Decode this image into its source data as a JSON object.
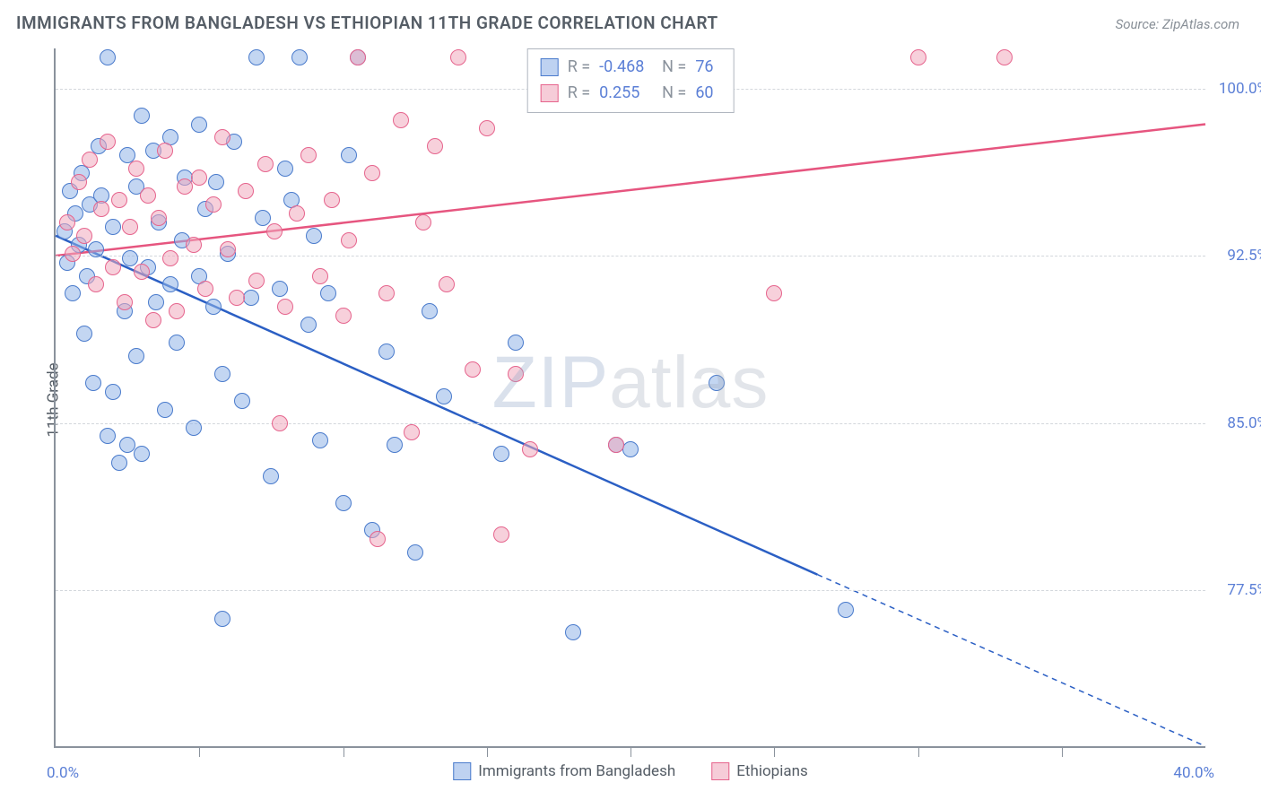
{
  "title": "IMMIGRANTS FROM BANGLADESH VS ETHIOPIAN 11TH GRADE CORRELATION CHART",
  "source_label": "Source:",
  "source_name": "ZipAtlas.com",
  "ylabel": "11th Grade",
  "watermark_bold": "ZIP",
  "watermark_thin": "atlas",
  "chart": {
    "type": "scatter",
    "background_color": "#ffffff",
    "grid_color": "#d3d7dc",
    "axis_color": "#8a929c",
    "text_color": "#555d66",
    "value_color": "#5b7fd6",
    "xlim": [
      0,
      40
    ],
    "ylim": [
      70.5,
      101.8
    ],
    "xtick_min_label": "0.0%",
    "xtick_max_label": "40.0%",
    "xtick_positions": [
      5,
      10,
      15,
      20,
      25,
      30,
      35
    ],
    "yticks": [
      {
        "v": 77.5,
        "label": "77.5%"
      },
      {
        "v": 85.0,
        "label": "85.0%"
      },
      {
        "v": 92.5,
        "label": "92.5%"
      },
      {
        "v": 100.0,
        "label": "100.0%"
      }
    ],
    "legend_top": {
      "r_label": "R =",
      "n_label": "N =",
      "rows": [
        {
          "swatch": "blue",
          "r": "-0.468",
          "n": "76"
        },
        {
          "swatch": "pink",
          "r": "0.255",
          "n": "60"
        }
      ]
    },
    "legend_bottom": [
      {
        "swatch": "blue",
        "label": "Immigrants from Bangladesh"
      },
      {
        "swatch": "pink",
        "label": "Ethiopians"
      }
    ],
    "series": [
      {
        "name": "bangladesh",
        "color_fill": "rgba(146,180,232,0.55)",
        "color_stroke": "#4a7bcc",
        "line_color": "#2b5fc4",
        "line_width": 2.5,
        "trend": {
          "x1": 0,
          "y1": 93.4,
          "x2": 26.5,
          "y2": 78.2,
          "ext_x2": 40,
          "ext_y2": 70.5
        },
        "points": [
          [
            0.3,
            93.6
          ],
          [
            0.4,
            92.2
          ],
          [
            0.5,
            95.4
          ],
          [
            0.6,
            90.8
          ],
          [
            0.7,
            94.4
          ],
          [
            0.8,
            93.0
          ],
          [
            0.9,
            96.2
          ],
          [
            1.0,
            89.0
          ],
          [
            1.1,
            91.6
          ],
          [
            1.2,
            94.8
          ],
          [
            1.3,
            86.8
          ],
          [
            1.4,
            92.8
          ],
          [
            1.5,
            97.4
          ],
          [
            1.6,
            95.2
          ],
          [
            1.8,
            84.4
          ],
          [
            1.8,
            101.4
          ],
          [
            2.0,
            93.8
          ],
          [
            2.0,
            86.4
          ],
          [
            2.2,
            83.2
          ],
          [
            2.4,
            90.0
          ],
          [
            2.5,
            97.0
          ],
          [
            2.5,
            84.0
          ],
          [
            2.6,
            92.4
          ],
          [
            2.8,
            95.6
          ],
          [
            2.8,
            88.0
          ],
          [
            3.0,
            98.8
          ],
          [
            3.0,
            83.6
          ],
          [
            3.2,
            92.0
          ],
          [
            3.4,
            97.2
          ],
          [
            3.5,
            90.4
          ],
          [
            3.6,
            94.0
          ],
          [
            3.8,
            85.6
          ],
          [
            4.0,
            91.2
          ],
          [
            4.0,
            97.8
          ],
          [
            4.2,
            88.6
          ],
          [
            4.4,
            93.2
          ],
          [
            4.5,
            96.0
          ],
          [
            4.8,
            84.8
          ],
          [
            5.0,
            91.6
          ],
          [
            5.0,
            98.4
          ],
          [
            5.2,
            94.6
          ],
          [
            5.5,
            90.2
          ],
          [
            5.6,
            95.8
          ],
          [
            5.8,
            87.2
          ],
          [
            6.0,
            92.6
          ],
          [
            6.2,
            97.6
          ],
          [
            6.5,
            86.0
          ],
          [
            6.8,
            90.6
          ],
          [
            7.0,
            101.4
          ],
          [
            7.2,
            94.2
          ],
          [
            7.5,
            82.6
          ],
          [
            7.8,
            91.0
          ],
          [
            8.0,
            96.4
          ],
          [
            8.2,
            95.0
          ],
          [
            8.5,
            101.4
          ],
          [
            8.8,
            89.4
          ],
          [
            9.0,
            93.4
          ],
          [
            9.2,
            84.2
          ],
          [
            9.5,
            90.8
          ],
          [
            10.0,
            81.4
          ],
          [
            10.2,
            97.0
          ],
          [
            10.5,
            101.4
          ],
          [
            11.0,
            80.2
          ],
          [
            11.5,
            88.2
          ],
          [
            11.8,
            84.0
          ],
          [
            12.5,
            79.2
          ],
          [
            13.0,
            90.0
          ],
          [
            13.5,
            86.2
          ],
          [
            15.5,
            83.6
          ],
          [
            16.0,
            88.6
          ],
          [
            18.0,
            75.6
          ],
          [
            19.5,
            84.0
          ],
          [
            20.0,
            83.8
          ],
          [
            23.0,
            86.8
          ],
          [
            27.5,
            76.6
          ],
          [
            5.8,
            76.2
          ]
        ]
      },
      {
        "name": "ethiopians",
        "color_fill": "rgba(240,170,190,0.55)",
        "color_stroke": "#e6648d",
        "line_color": "#e6557f",
        "line_width": 2.5,
        "trend": {
          "x1": 0,
          "y1": 92.5,
          "x2": 40,
          "y2": 98.4
        },
        "points": [
          [
            0.4,
            94.0
          ],
          [
            0.6,
            92.6
          ],
          [
            0.8,
            95.8
          ],
          [
            1.0,
            93.4
          ],
          [
            1.2,
            96.8
          ],
          [
            1.4,
            91.2
          ],
          [
            1.6,
            94.6
          ],
          [
            1.8,
            97.6
          ],
          [
            2.0,
            92.0
          ],
          [
            2.2,
            95.0
          ],
          [
            2.4,
            90.4
          ],
          [
            2.6,
            93.8
          ],
          [
            2.8,
            96.4
          ],
          [
            3.0,
            91.8
          ],
          [
            3.2,
            95.2
          ],
          [
            3.4,
            89.6
          ],
          [
            3.6,
            94.2
          ],
          [
            3.8,
            97.2
          ],
          [
            4.0,
            92.4
          ],
          [
            4.2,
            90.0
          ],
          [
            4.5,
            95.6
          ],
          [
            4.8,
            93.0
          ],
          [
            5.0,
            96.0
          ],
          [
            5.2,
            91.0
          ],
          [
            5.5,
            94.8
          ],
          [
            5.8,
            97.8
          ],
          [
            6.0,
            92.8
          ],
          [
            6.3,
            90.6
          ],
          [
            6.6,
            95.4
          ],
          [
            7.0,
            91.4
          ],
          [
            7.3,
            96.6
          ],
          [
            7.6,
            93.6
          ],
          [
            8.0,
            90.2
          ],
          [
            8.4,
            94.4
          ],
          [
            8.8,
            97.0
          ],
          [
            9.2,
            91.6
          ],
          [
            9.6,
            95.0
          ],
          [
            10.0,
            89.8
          ],
          [
            10.2,
            93.2
          ],
          [
            10.5,
            101.4
          ],
          [
            11.0,
            96.2
          ],
          [
            11.2,
            79.8
          ],
          [
            11.5,
            90.8
          ],
          [
            12.0,
            98.6
          ],
          [
            12.4,
            84.6
          ],
          [
            12.8,
            94.0
          ],
          [
            13.2,
            97.4
          ],
          [
            13.6,
            91.2
          ],
          [
            14.0,
            101.4
          ],
          [
            14.5,
            87.4
          ],
          [
            15.0,
            98.2
          ],
          [
            15.5,
            80.0
          ],
          [
            16.0,
            87.2
          ],
          [
            16.5,
            83.8
          ],
          [
            17.0,
            101.4
          ],
          [
            19.5,
            84.0
          ],
          [
            25.0,
            90.8
          ],
          [
            30.0,
            101.4
          ],
          [
            33.0,
            101.4
          ],
          [
            7.8,
            85.0
          ]
        ]
      }
    ]
  }
}
